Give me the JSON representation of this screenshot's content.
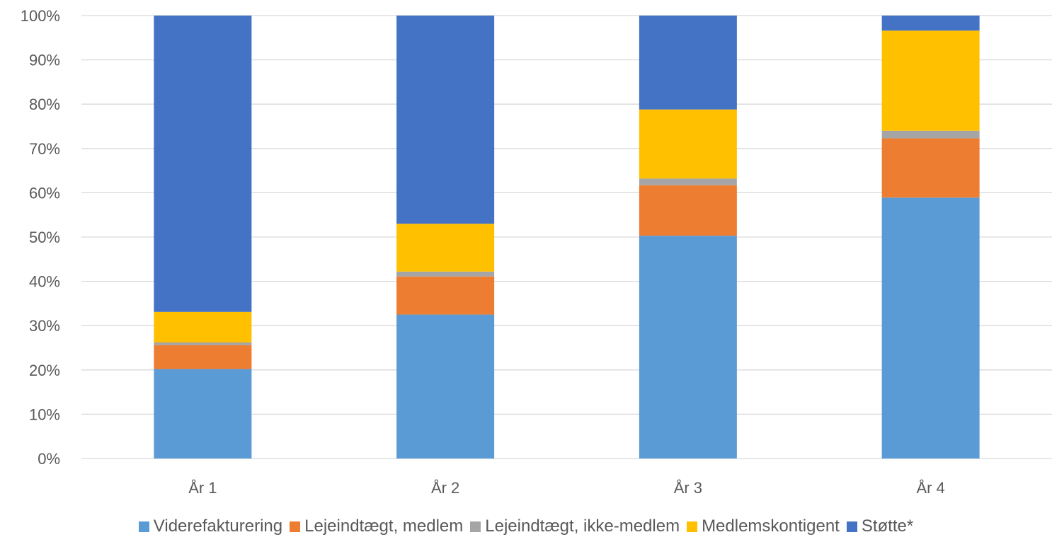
{
  "chart_data": {
    "type": "bar",
    "stacked": "percent",
    "categories": [
      "År 1",
      "År 2",
      "År 3",
      "År 4"
    ],
    "series": [
      {
        "name": "Viderefakturering",
        "color": "#5b9bd5",
        "values": [
          20.2,
          32.5,
          50.3,
          58.9
        ]
      },
      {
        "name": "Lejeindtægt, medlem",
        "color": "#ed7d31",
        "values": [
          5.4,
          8.6,
          11.4,
          13.4
        ]
      },
      {
        "name": "Lejeindtægt, ikke-medlem",
        "color": "#a5a5a5",
        "values": [
          0.6,
          1.1,
          1.5,
          1.7
        ]
      },
      {
        "name": "Medlemskontigent",
        "color": "#ffc000",
        "values": [
          6.9,
          10.8,
          15.6,
          22.6
        ]
      },
      {
        "name": "Støtte*",
        "color": "#4472c4",
        "values": [
          66.9,
          47.0,
          21.2,
          3.4
        ]
      }
    ],
    "ylim": [
      0,
      100
    ],
    "yticks": [
      "0%",
      "10%",
      "20%",
      "30%",
      "40%",
      "50%",
      "60%",
      "70%",
      "80%",
      "90%",
      "100%"
    ],
    "grid": true,
    "legend_position": "bottom"
  }
}
